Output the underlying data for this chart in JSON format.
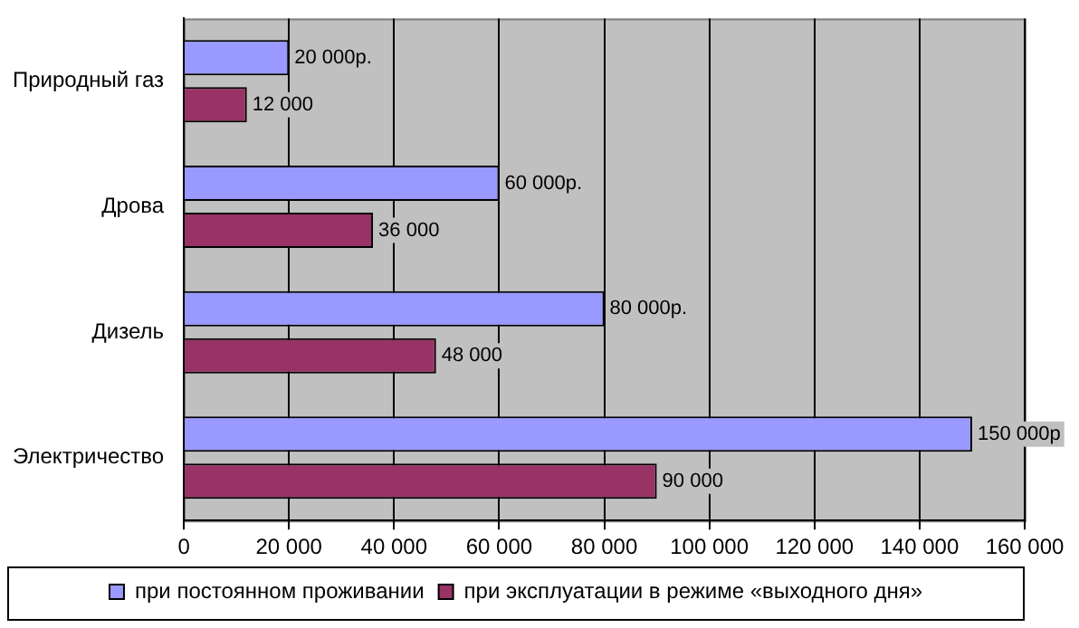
{
  "chart_data": {
    "type": "bar",
    "orientation": "horizontal",
    "categories": [
      "Природный газ",
      "Дрова",
      "Дизель",
      "Электричество"
    ],
    "series": [
      {
        "name": "при постоянном проживании",
        "color": "#9999ff",
        "values": [
          20000,
          60000,
          80000,
          150000
        ],
        "value_labels": [
          "20 000р.",
          "60 000р.",
          "80 000р.",
          "150 000р"
        ]
      },
      {
        "name": "при эксплуатации в режиме «выходного дня»",
        "color": "#993366",
        "values": [
          12000,
          36000,
          48000,
          90000
        ],
        "value_labels": [
          "12 000",
          "36 000",
          "48 000",
          "90 000"
        ]
      }
    ],
    "xlim": [
      0,
      160000
    ],
    "xticks": [
      0,
      {
        "value": 20000,
        "label": "20 000"
      },
      {
        "value": 40000,
        "label": "40 000"
      },
      {
        "value": 60000,
        "label": "60 000"
      },
      {
        "value": 80000,
        "label": "80 000"
      },
      {
        "value": 100000,
        "label": "100 000"
      },
      {
        "value": 120000,
        "label": "120 000"
      },
      {
        "value": 140000,
        "label": "140 000"
      },
      {
        "value": 160000,
        "label": "160 000"
      }
    ],
    "grid": "x",
    "legend": "bottom"
  }
}
